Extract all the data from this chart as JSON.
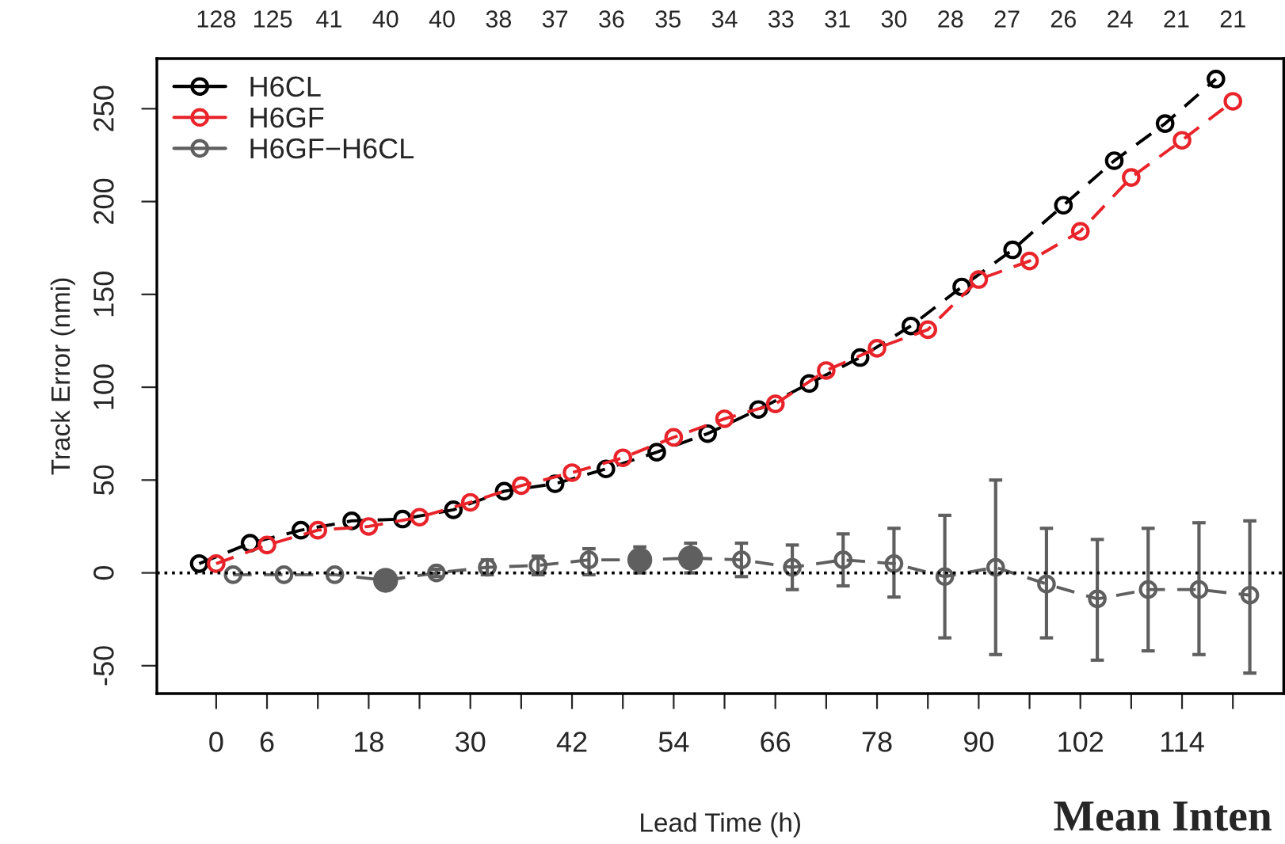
{
  "chart_data": {
    "type": "line",
    "xlabel": "Lead Time (h)",
    "ylabel": "Track Error (nmi)",
    "xlim": [
      -7,
      126
    ],
    "ylim": [
      -65,
      277
    ],
    "xticks": [
      0,
      6,
      {
        "value": 12,
        "label": null
      },
      18,
      {
        "value": 24,
        "label": null
      },
      30,
      {
        "value": 36,
        "label": null
      },
      42,
      {
        "value": 48,
        "label": null
      },
      54,
      {
        "value": 60,
        "label": null
      },
      66,
      {
        "value": 72,
        "label": null
      },
      78,
      {
        "value": 84,
        "label": null
      },
      90,
      {
        "value": 96,
        "label": null
      },
      102,
      {
        "value": 108,
        "label": null
      },
      114,
      {
        "value": 120,
        "label": null
      }
    ],
    "yticks": [
      -50,
      0,
      50,
      100,
      150,
      200,
      250
    ],
    "grid": false,
    "legend": "top left",
    "marker": "circle",
    "line_style": "dashed",
    "ref_lines": [
      {
        "axis": "y",
        "value": 0,
        "label": null,
        "color": "#000000",
        "line_style": "dotted"
      }
    ],
    "annotations": [
      "128",
      "125",
      "41",
      "40",
      "40",
      "38",
      "37",
      "36",
      "35",
      "34",
      "33",
      "31",
      "30",
      "28",
      "27",
      "26",
      "24",
      "21",
      "21",
      "Mean Inten"
    ],
    "series": [
      {
        "name": "H6CL",
        "color": "#000000",
        "x": [
          -2,
          4,
          10,
          16,
          22,
          28,
          34,
          40,
          46,
          52,
          58,
          64,
          70,
          76,
          82,
          88,
          94,
          100,
          106,
          112,
          118
        ],
        "values": [
          5,
          16,
          23,
          28,
          29,
          34,
          44,
          48,
          56,
          65,
          75,
          88,
          102,
          116,
          133,
          154,
          174,
          198,
          222,
          242,
          266
        ]
      },
      {
        "name": "H6GF",
        "color": "#e8242a",
        "x": [
          0,
          6,
          12,
          18,
          24,
          30,
          36,
          42,
          48,
          54,
          60,
          66,
          72,
          78,
          84,
          90,
          96,
          102,
          108,
          114,
          120
        ],
        "values": [
          5,
          15,
          23,
          25,
          30,
          38,
          47,
          54,
          62,
          73,
          83,
          91,
          109,
          121,
          131,
          158,
          168,
          184,
          213,
          233,
          254
        ]
      },
      {
        "name": "H6GF−H6CL",
        "color": "#5f5f5f",
        "x": [
          2,
          8,
          14,
          20,
          26,
          32,
          38,
          44,
          50,
          56,
          62,
          68,
          74,
          80,
          86,
          92,
          98,
          104,
          110,
          116,
          122
        ],
        "values": [
          -1,
          -1,
          -1,
          -4,
          0,
          3,
          4,
          7,
          7,
          8,
          7,
          3,
          7,
          5,
          -2,
          3,
          -6,
          -14,
          -9,
          -9,
          -12
        ],
        "errors": [
          null,
          null,
          null,
          null,
          2,
          4,
          5,
          [
            -1,
            13
          ],
          [
            0,
            14
          ],
          [
            0,
            16
          ],
          [
            -2,
            16
          ],
          [
            -9,
            15
          ],
          [
            -7,
            21
          ],
          [
            -13,
            24
          ],
          [
            -35,
            31
          ],
          [
            -44,
            50
          ],
          [
            -35,
            24
          ],
          [
            -47,
            18
          ],
          [
            -42,
            24
          ],
          [
            -44,
            27
          ],
          [
            -54,
            28
          ]
        ]
      },
      {
        "type": "scatter",
        "color": "#5f5f5f",
        "x": [
          20,
          50,
          56
        ],
        "values": [
          -4,
          7,
          8
        ]
      }
    ]
  }
}
